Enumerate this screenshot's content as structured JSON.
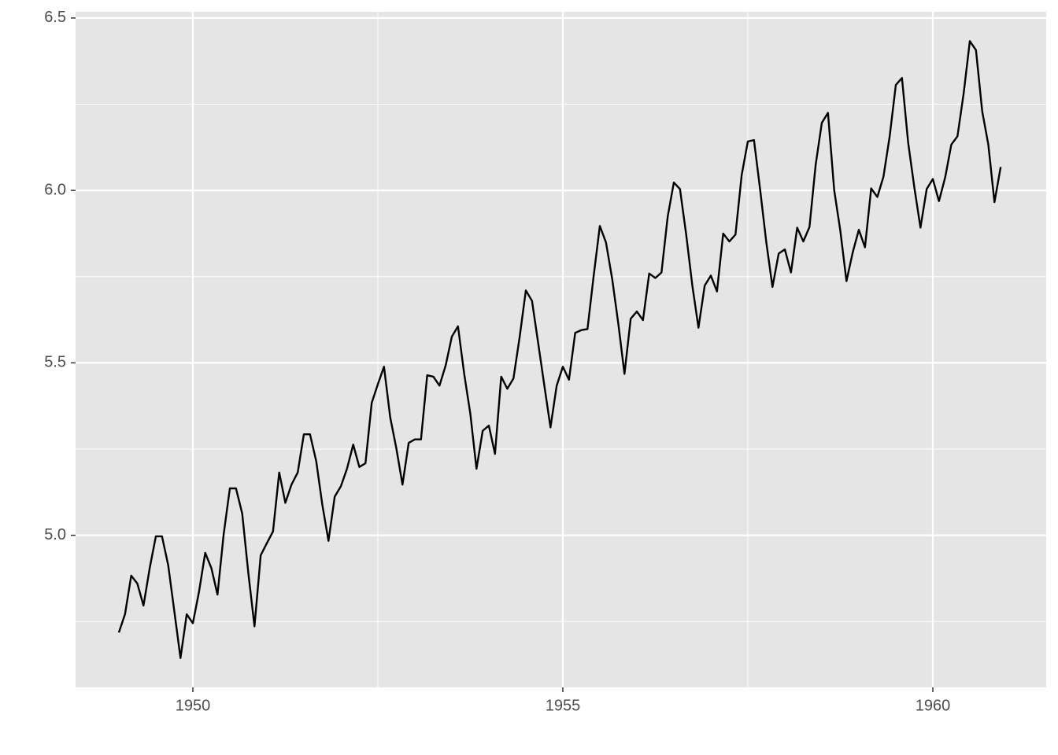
{
  "chart_data": {
    "type": "line",
    "x": [
      1949,
      1949.083,
      1949.167,
      1949.25,
      1949.333,
      1949.417,
      1949.5,
      1949.583,
      1949.667,
      1949.75,
      1949.833,
      1949.917,
      1950,
      1950.083,
      1950.167,
      1950.25,
      1950.333,
      1950.417,
      1950.5,
      1950.583,
      1950.667,
      1950.75,
      1950.833,
      1950.917,
      1951,
      1951.083,
      1951.167,
      1951.25,
      1951.333,
      1951.417,
      1951.5,
      1951.583,
      1951.667,
      1951.75,
      1951.833,
      1951.917,
      1952,
      1952.083,
      1952.167,
      1952.25,
      1952.333,
      1952.417,
      1952.5,
      1952.583,
      1952.667,
      1952.75,
      1952.833,
      1952.917,
      1953,
      1953.083,
      1953.167,
      1953.25,
      1953.333,
      1953.417,
      1953.5,
      1953.583,
      1953.667,
      1953.75,
      1953.833,
      1953.917,
      1954,
      1954.083,
      1954.167,
      1954.25,
      1954.333,
      1954.417,
      1954.5,
      1954.583,
      1954.667,
      1954.75,
      1954.833,
      1954.917,
      1955,
      1955.083,
      1955.167,
      1955.25,
      1955.333,
      1955.417,
      1955.5,
      1955.583,
      1955.667,
      1955.75,
      1955.833,
      1955.917,
      1956,
      1956.083,
      1956.167,
      1956.25,
      1956.333,
      1956.417,
      1956.5,
      1956.583,
      1956.667,
      1956.75,
      1956.833,
      1956.917,
      1957,
      1957.083,
      1957.167,
      1957.25,
      1957.333,
      1957.417,
      1957.5,
      1957.583,
      1957.667,
      1957.75,
      1957.833,
      1957.917,
      1958,
      1958.083,
      1958.167,
      1958.25,
      1958.333,
      1958.417,
      1958.5,
      1958.583,
      1958.667,
      1958.75,
      1958.833,
      1958.917,
      1959,
      1959.083,
      1959.167,
      1959.25,
      1959.333,
      1959.417,
      1959.5,
      1959.583,
      1959.667,
      1959.75,
      1959.833,
      1959.917,
      1960,
      1960.083,
      1960.167,
      1960.25,
      1960.333,
      1960.417,
      1960.5,
      1960.583,
      1960.667,
      1960.75,
      1960.833,
      1960.917
    ],
    "series": [
      {
        "color": "#000000",
        "values": [
          4.718,
          4.771,
          4.883,
          4.86,
          4.796,
          4.905,
          4.997,
          4.997,
          4.913,
          4.779,
          4.644,
          4.771,
          4.745,
          4.836,
          4.949,
          4.905,
          4.828,
          5.004,
          5.136,
          5.136,
          5.063,
          4.89,
          4.736,
          4.942,
          4.977,
          5.011,
          5.182,
          5.094,
          5.147,
          5.182,
          5.293,
          5.293,
          5.215,
          5.088,
          4.984,
          5.112,
          5.142,
          5.193,
          5.263,
          5.198,
          5.209,
          5.384,
          5.438,
          5.489,
          5.342,
          5.252,
          5.147,
          5.268,
          5.278,
          5.278,
          5.464,
          5.46,
          5.434,
          5.493,
          5.576,
          5.606,
          5.468,
          5.352,
          5.193,
          5.303,
          5.318,
          5.236,
          5.46,
          5.425,
          5.455,
          5.576,
          5.71,
          5.68,
          5.557,
          5.434,
          5.313,
          5.434,
          5.489,
          5.451,
          5.587,
          5.595,
          5.598,
          5.753,
          5.897,
          5.849,
          5.743,
          5.613,
          5.468,
          5.628,
          5.649,
          5.624,
          5.759,
          5.746,
          5.762,
          5.924,
          6.023,
          6.004,
          5.872,
          5.724,
          5.602,
          5.724,
          5.753,
          5.707,
          5.875,
          5.852,
          5.872,
          6.045,
          6.142,
          6.146,
          6.001,
          5.849,
          5.72,
          5.817,
          5.829,
          5.762,
          5.892,
          5.852,
          5.894,
          6.075,
          6.196,
          6.225,
          6.001,
          5.883,
          5.737,
          5.82,
          5.886,
          5.835,
          6.006,
          5.981,
          6.04,
          6.157,
          6.306,
          6.326,
          6.138,
          6.009,
          5.892,
          6.004,
          6.033,
          5.969,
          6.038,
          6.133,
          6.157,
          6.282,
          6.433,
          6.407,
          6.23,
          6.133,
          5.966,
          6.068
        ]
      }
    ],
    "xlim": [
      1948.415,
      1961.532
    ],
    "xticks": [
      1950,
      1955,
      1960
    ],
    "ylim": [
      4.559,
      6.518
    ],
    "yticks": [
      {
        "value": 5,
        "label": "5.0"
      },
      5.5,
      {
        "value": 6,
        "label": "6.0"
      },
      6.5
    ],
    "minor_xticks": [
      1952.5,
      1957.5
    ],
    "minor_yticks": [
      4.75,
      5.25,
      5.75,
      6.25
    ],
    "grid": true
  }
}
